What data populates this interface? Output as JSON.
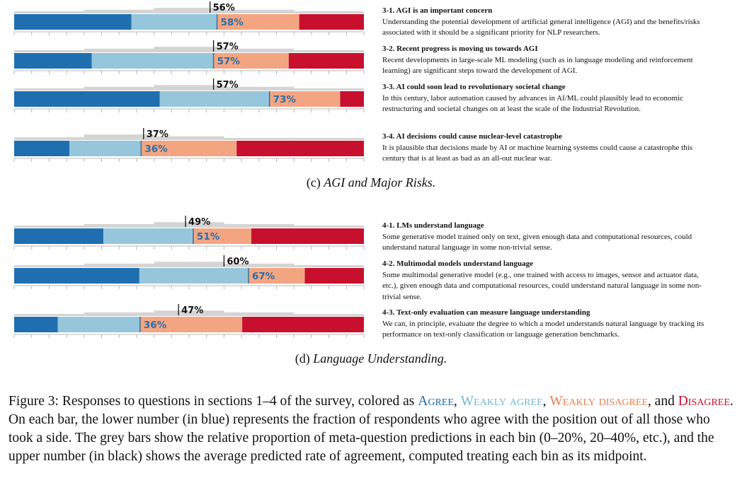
{
  "colors": {
    "agree": "#1f6fb0",
    "weakly_agree": "#95c6dc",
    "weakly_disagree": "#f3a581",
    "disagree": "#c8102e",
    "meta_bar": "#d4d4d4",
    "lower_number": "#2b6ca8",
    "upper_number": "#111111"
  },
  "chart_data": [
    {
      "type": "bar",
      "panel": "c",
      "caption_label": "(c)",
      "caption_title": "AGI and Major Risks.",
      "questions": [
        {
          "id": "3-1",
          "title": "3-1. AGI is an important concern",
          "text": "Understanding the potential development of artificial general intelligence (AGI) and the benefits/risks associated with it should be a significant priority for NLP researchers.",
          "shares": {
            "agree": 33.5,
            "weakly_agree": 24.5,
            "weakly_disagree": 23.5,
            "disagree": 18.5
          },
          "meta_bins": [
            0.18,
            0.4,
            0.6,
            0.4,
            0.22
          ],
          "agree_label": "58%",
          "predicted_label": "56%",
          "predicted": 56
        },
        {
          "id": "3-2",
          "title": "3-2. Recent progress is moving us towards AGI",
          "text": "Recent developments in large-scale ML modeling (such as in language modeling and reinforcement learning) are significant steps toward the development of AGI.",
          "shares": {
            "agree": 22.2,
            "weakly_agree": 34.8,
            "weakly_disagree": 21.5,
            "disagree": 21.5
          },
          "meta_bins": [
            0.18,
            0.4,
            0.6,
            0.4,
            0.22
          ],
          "agree_label": "57%",
          "predicted_label": "57%",
          "predicted": 57
        },
        {
          "id": "3-3",
          "title": "3-3. AI could soon lead to revolutionary societal change",
          "text": "In this century, labor automation caused by advances in AI/ML could plausibly lead to economic restructuring and societal changes on at least the scale of the Industrial Revolution.",
          "shares": {
            "agree": 41.6,
            "weakly_agree": 31.4,
            "weakly_disagree": 20.2,
            "disagree": 6.8
          },
          "meta_bins": [
            0.18,
            0.4,
            0.6,
            0.4,
            0.22
          ],
          "agree_label": "73%",
          "predicted_label": "57%",
          "predicted": 57
        },
        {
          "id": "3-4",
          "title": "3-4. AI decisions could cause nuclear-level catastrophe",
          "text": "It is plausible that decisions made by AI or machine learning systems could cause a catastrophe this century that is at least as bad as an all-out nuclear war.",
          "shares": {
            "agree": 15.8,
            "weakly_agree": 20.5,
            "weakly_disagree": 27.3,
            "disagree": 36.4
          },
          "meta_bins": [
            0.3,
            0.6,
            0.4,
            0.18,
            0.12
          ],
          "agree_label": "36%",
          "predicted_label": "37%",
          "predicted": 37
        }
      ]
    },
    {
      "type": "bar",
      "panel": "d",
      "caption_label": "(d)",
      "caption_title": "Language Understanding.",
      "questions": [
        {
          "id": "4-1",
          "title": "4-1. LMs understand language",
          "text": "Some generative model trained only on text, given enough data and computational resources, could understand natural language in some non-trivial sense.",
          "shares": {
            "agree": 25.5,
            "weakly_agree": 25.7,
            "weakly_disagree": 16.6,
            "disagree": 32.2
          },
          "meta_bins": [
            0.18,
            0.4,
            0.6,
            0.4,
            0.22
          ],
          "agree_label": "51%",
          "predicted_label": "49%",
          "predicted": 49
        },
        {
          "id": "4-2",
          "title": "4-2. Multimodal models understand language",
          "text": "Some multimodal generative model (e.g., one trained with access to images, sensor and actuator data, etc.), given enough data and computational resources, could understand natural language in some non-trivial sense.",
          "shares": {
            "agree": 35.8,
            "weakly_agree": 31.2,
            "weakly_disagree": 16.1,
            "disagree": 16.9
          },
          "meta_bins": [
            0.18,
            0.4,
            0.6,
            0.4,
            0.22
          ],
          "agree_label": "67%",
          "predicted_label": "60%",
          "predicted": 60
        },
        {
          "id": "4-3",
          "title": "4-3. Text-only evaluation can measure language understanding",
          "text": "We can, in principle, evaluate the degree to which a model understands natural language by tracking its performance on text-only classification or language generation benchmarks.",
          "shares": {
            "agree": 12.5,
            "weakly_agree": 23.5,
            "weakly_disagree": 29.2,
            "disagree": 34.8
          },
          "meta_bins": [
            0.18,
            0.4,
            0.6,
            0.4,
            0.22
          ],
          "agree_label": "36%",
          "predicted_label": "47%",
          "predicted": 47
        }
      ]
    }
  ],
  "figure_caption": {
    "prefix": "Figure 3: Responses to questions in sections 1–4 of the survey, colored as ",
    "agree": "Agree",
    "sep1": ", ",
    "weakly_agree": "Weakly agree",
    "sep2": ", ",
    "weakly_disagree": "Weakly disagree",
    "sep3": ", and ",
    "disagree": "Disagree",
    "rest": ". On each bar, the lower number (in blue) represents the fraction of respondents who agree with the position out of all those who took a side. The grey bars show the relative proportion of meta-question predictions in each bin (0–20%, 20–40%, etc.), and the upper number (in black) shows the average predicted rate of agreement, computed treating each bin as its midpoint."
  }
}
